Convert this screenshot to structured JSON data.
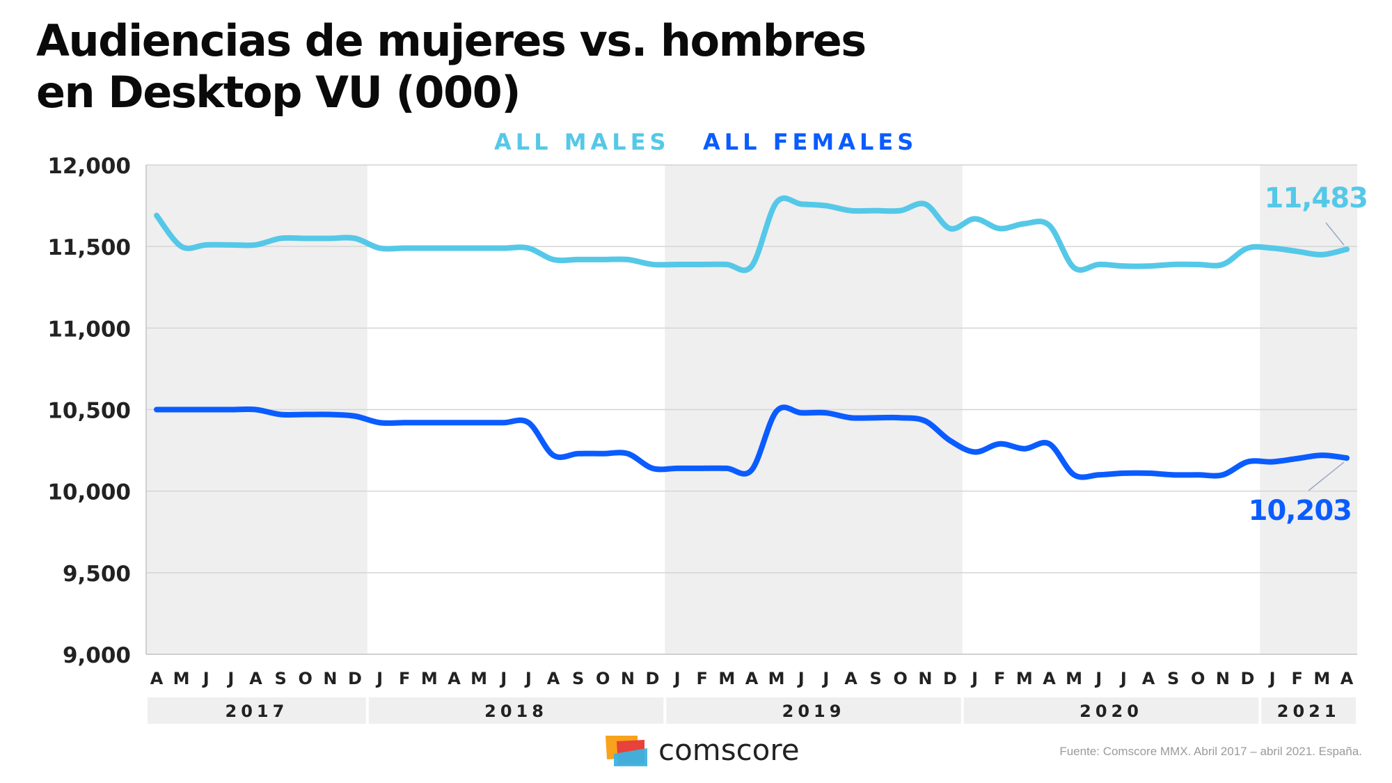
{
  "title_line1": "Audiencias de mujeres vs. hombres",
  "title_line2": "en Desktop VU (000)",
  "legend": {
    "males": "ALL MALES",
    "females": "ALL FEMALES"
  },
  "brand": "comscore",
  "source": "Fuente: Comscore MMX. Abril 2017 – abril 2021. España.",
  "colors": {
    "males": "#55c8e8",
    "females": "#0a5cff",
    "band": "#efefef"
  },
  "chart_data": {
    "type": "line",
    "x": [
      "A",
      "M",
      "J",
      "J",
      "A",
      "S",
      "O",
      "N",
      "D",
      "J",
      "F",
      "M",
      "A",
      "M",
      "J",
      "J",
      "A",
      "S",
      "O",
      "N",
      "D",
      "J",
      "F",
      "M",
      "A",
      "M",
      "J",
      "J",
      "A",
      "S",
      "O",
      "N",
      "D",
      "J",
      "F",
      "M",
      "A",
      "M",
      "J",
      "J",
      "A",
      "S",
      "O",
      "N",
      "D",
      "J",
      "F",
      "M",
      "A"
    ],
    "years": [
      {
        "label": "2017",
        "start": 0,
        "end": 8
      },
      {
        "label": "2018",
        "start": 9,
        "end": 20
      },
      {
        "label": "2019",
        "start": 21,
        "end": 32
      },
      {
        "label": "2020",
        "start": 33,
        "end": 44
      },
      {
        "label": "2021",
        "start": 45,
        "end": 48
      }
    ],
    "series": [
      {
        "name": "ALL MALES",
        "values": [
          11690,
          11500,
          11510,
          11510,
          11510,
          11550,
          11550,
          11550,
          11550,
          11490,
          11490,
          11490,
          11490,
          11490,
          11490,
          11490,
          11420,
          11420,
          11420,
          11420,
          11390,
          11390,
          11390,
          11390,
          11380,
          11770,
          11760,
          11750,
          11720,
          11720,
          11720,
          11760,
          11610,
          11670,
          11610,
          11640,
          11630,
          11370,
          11390,
          11380,
          11380,
          11390,
          11390,
          11390,
          11490,
          11490,
          11470,
          11450,
          11483
        ],
        "end_label": "11,483"
      },
      {
        "name": "ALL FEMALES",
        "values": [
          10500,
          10500,
          10500,
          10500,
          10500,
          10470,
          10470,
          10470,
          10460,
          10420,
          10420,
          10420,
          10420,
          10420,
          10420,
          10420,
          10220,
          10230,
          10230,
          10230,
          10140,
          10140,
          10140,
          10140,
          10130,
          10490,
          10480,
          10480,
          10450,
          10450,
          10450,
          10430,
          10310,
          10240,
          10290,
          10260,
          10290,
          10100,
          10100,
          10110,
          10110,
          10100,
          10100,
          10100,
          10180,
          10180,
          10200,
          10220,
          10203
        ],
        "end_label": "10,203"
      }
    ],
    "y_ticks": [
      "9,000",
      "9,500",
      "10,000",
      "10,500",
      "11,000",
      "11,500",
      "12,000"
    ],
    "ylim": [
      9000,
      12000
    ],
    "grid": true,
    "legend_position": "top-center"
  }
}
